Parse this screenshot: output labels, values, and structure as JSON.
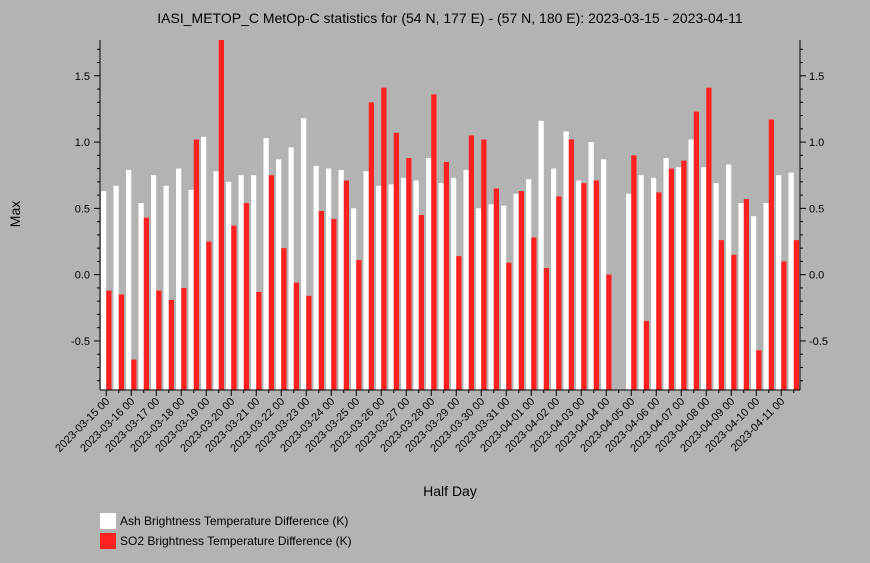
{
  "colors": {
    "background": "#b3b3b3",
    "ash": "#ffffff",
    "so2": "#ff2020"
  },
  "chart_data": {
    "type": "bar",
    "title": "IASI_METOP_C MetOp-C statistics for (54 N, 177 E) - (57 N, 180 E): 2023-03-15 - 2023-04-11",
    "xlabel": "Half Day",
    "ylabel": "Max",
    "ylim": [
      -0.87,
      1.77
    ],
    "yticks": [
      -0.5,
      0.0,
      0.5,
      1.0,
      1.5
    ],
    "ytick_labels": [
      "-0.5",
      "0.0",
      "0.5",
      "1.0",
      "1.5"
    ],
    "grid": false,
    "legend_position": "bottom-left",
    "x_tick_labels": [
      "2023-03-15 00",
      "2023-03-16 00",
      "2023-03-17 00",
      "2023-03-18 00",
      "2023-03-19 00",
      "2023-03-20 00",
      "2023-03-21 00",
      "2023-03-22 00",
      "2023-03-23 00",
      "2023-03-24 00",
      "2023-03-25 00",
      "2023-03-26 00",
      "2023-03-27 00",
      "2023-03-28 00",
      "2023-03-29 00",
      "2023-03-30 00",
      "2023-03-31 00",
      "2023-04-01 00",
      "2023-04-02 00",
      "2023-04-03 00",
      "2023-04-04 00",
      "2023-04-05 00",
      "2023-04-06 00",
      "2023-04-07 00",
      "2023-04-08 00",
      "2023-04-09 00",
      "2023-04-10 00",
      "2023-04-11 00"
    ],
    "series": [
      {
        "name": "Ash Brightness Temperature Difference (K)",
        "color": "#ffffff",
        "values": [
          0.63,
          0.67,
          0.79,
          0.54,
          0.75,
          0.67,
          0.8,
          0.64,
          1.04,
          0.78,
          0.7,
          0.75,
          0.75,
          1.03,
          0.87,
          0.96,
          1.18,
          0.82,
          0.8,
          0.79,
          0.5,
          0.78,
          0.67,
          0.68,
          0.73,
          0.71,
          0.88,
          0.69,
          0.73,
          0.79,
          0.5,
          0.53,
          0.52,
          0.61,
          0.72,
          1.16,
          0.8,
          1.08,
          0.71,
          1.0,
          0.87,
          null,
          0.61,
          0.75,
          0.73,
          0.88,
          0.81,
          1.02,
          0.81,
          0.69,
          0.83,
          0.54,
          0.44,
          0.54,
          0.75,
          0.77
        ]
      },
      {
        "name": "SO2 Brightness Temperature Difference (K)",
        "color": "#ff2020",
        "values": [
          -0.12,
          -0.15,
          -0.64,
          0.43,
          -0.12,
          -0.19,
          -0.1,
          1.02,
          0.25,
          1.77,
          0.37,
          0.54,
          -0.13,
          0.75,
          0.2,
          -0.06,
          -0.16,
          0.48,
          0.42,
          0.71,
          0.11,
          1.3,
          1.41,
          1.07,
          0.88,
          0.45,
          1.36,
          0.85,
          0.14,
          1.05,
          1.02,
          0.65,
          0.09,
          0.63,
          0.28,
          0.05,
          0.59,
          1.02,
          0.69,
          0.71,
          0.0,
          null,
          0.9,
          -0.35,
          0.62,
          0.8,
          0.86,
          1.23,
          1.41,
          0.26,
          0.15,
          0.57,
          -0.57,
          1.17,
          0.1,
          0.26
        ]
      }
    ]
  }
}
